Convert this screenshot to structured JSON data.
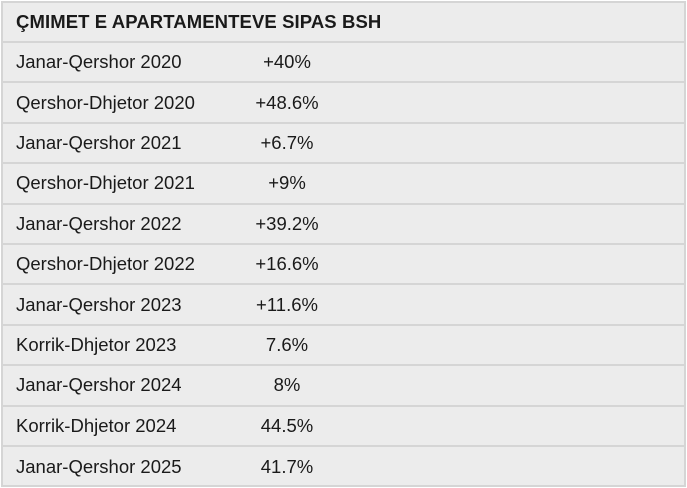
{
  "table": {
    "title": "ÇMIMET E APARTAMENTEVE SIPAS BSH",
    "rows": [
      {
        "period": "Janar-Qershor 2020",
        "change": "+40%"
      },
      {
        "period": "Qershor-Dhjetor 2020",
        "change": "+48.6%"
      },
      {
        "period": "Janar-Qershor 2021",
        "change": "+6.7%"
      },
      {
        "period": "Qershor-Dhjetor 2021",
        "change": "+9%"
      },
      {
        "period": "Janar-Qershor 2022",
        "change": "+39.2%"
      },
      {
        "period": "Qershor-Dhjetor 2022",
        "change": "+16.6%"
      },
      {
        "period": "Janar-Qershor 2023",
        "change": "+11.6%"
      },
      {
        "period": "Korrik-Dhjetor 2023",
        "change": "7.6%"
      },
      {
        "period": "Janar-Qershor 2024",
        "change": "8%"
      },
      {
        "period": "Korrik-Dhjetor 2024",
        "change": "44.5%"
      },
      {
        "period": "Janar-Qershor 2025",
        "change": "41.7%"
      }
    ]
  }
}
